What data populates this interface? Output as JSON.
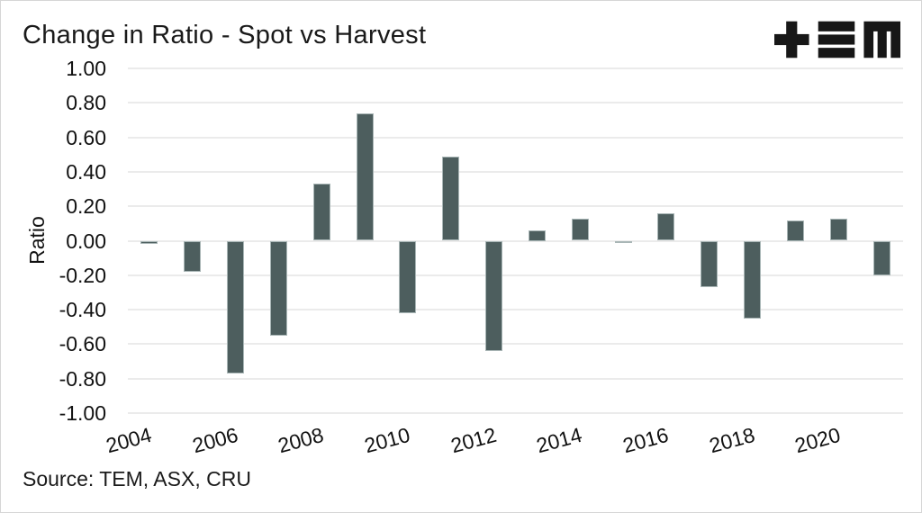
{
  "header": {
    "title": "Change in Ratio - Spot vs Harvest",
    "logo": "TEM"
  },
  "footer": {
    "source": "Source: TEM, ASX, CRU"
  },
  "chart_data": {
    "type": "bar",
    "title": "Change in Ratio - Spot vs Harvest",
    "xlabel": "",
    "ylabel": "Ratio",
    "ylim": [
      -1.0,
      1.0
    ],
    "ytick_values": [
      1.0,
      0.8,
      0.6,
      0.4,
      0.2,
      0.0,
      -0.2,
      -0.4,
      -0.6,
      -0.8,
      -1.0
    ],
    "ytick_labels": [
      "1.00",
      "0.80",
      "0.60",
      "0.40",
      "0.20",
      "0.00",
      "-0.20",
      "-0.40",
      "-0.60",
      "-0.80",
      "-1.00"
    ],
    "categories": [
      2004,
      2005,
      2006,
      2007,
      2008,
      2009,
      2010,
      2011,
      2012,
      2013,
      2014,
      2015,
      2016,
      2017,
      2018,
      2019,
      2020,
      2021
    ],
    "values": [
      -0.02,
      -0.18,
      -0.77,
      -0.55,
      0.33,
      0.74,
      -0.42,
      0.49,
      -0.64,
      0.06,
      0.13,
      -0.01,
      0.16,
      -0.27,
      -0.45,
      0.12,
      0.13,
      -0.2
    ],
    "xtick_labels": [
      "2004",
      "2006",
      "2008",
      "2010",
      "2012",
      "2014",
      "2016",
      "2018",
      "2020"
    ],
    "bar_color": "#4d5e5e",
    "bar_edge_color": "#a9b6b6",
    "gridline_color": "#ebebeb",
    "grid": "horizontal",
    "legend": "none"
  }
}
